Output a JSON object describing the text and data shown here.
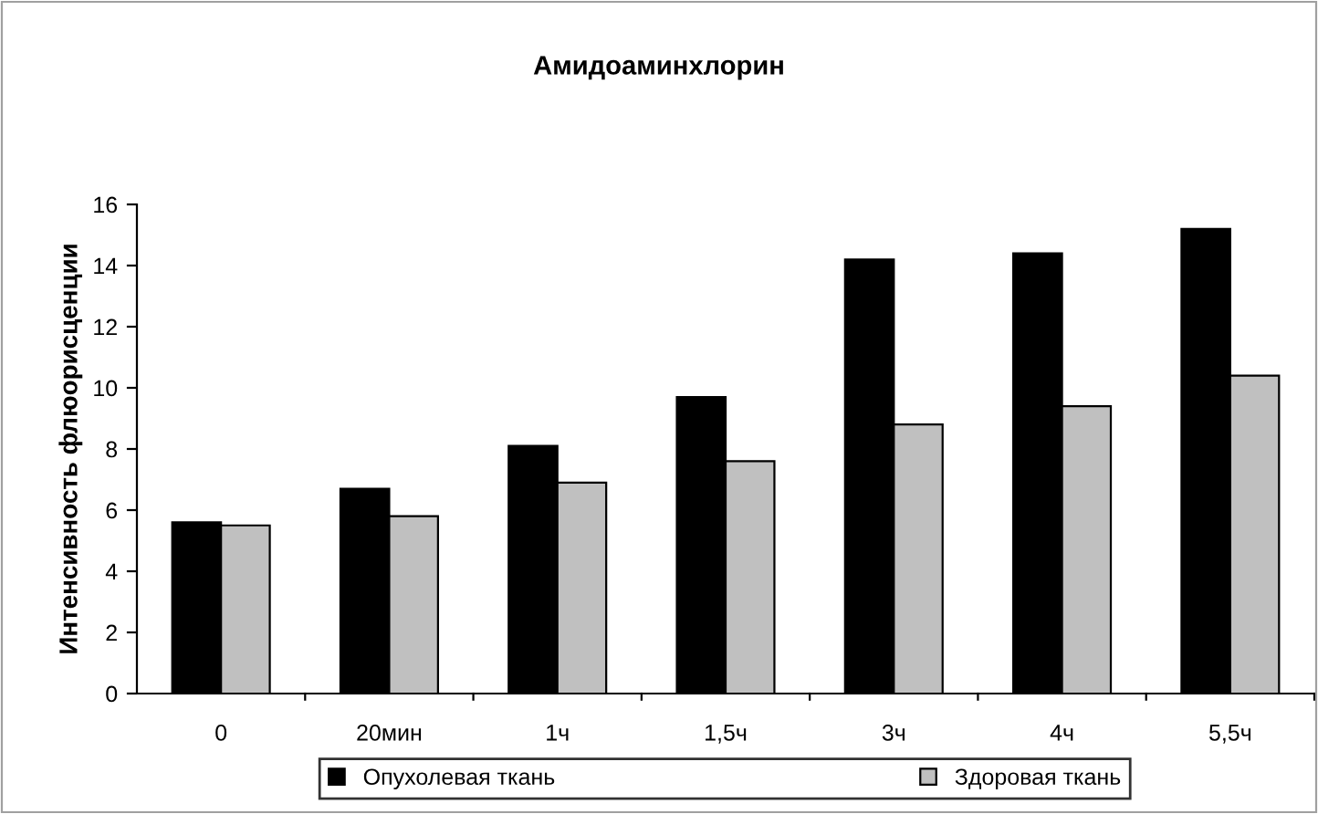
{
  "chart_data": {
    "type": "bar",
    "title": "Амидоаминхлорин",
    "ylabel": "Интенсивность флюорисценции",
    "categories": [
      "0",
      "20мин",
      "1ч",
      "1,5ч",
      "3ч",
      "4ч",
      "5,5ч"
    ],
    "series": [
      {
        "name": "Опухолевая ткань",
        "color": "#000000",
        "values": [
          5.6,
          6.7,
          8.1,
          9.7,
          14.2,
          14.4,
          15.2
        ]
      },
      {
        "name": "Здоровая ткань",
        "color": "#c0c0c0",
        "values": [
          5.5,
          5.8,
          6.9,
          7.6,
          8.8,
          9.4,
          10.4
        ]
      }
    ],
    "ylim": [
      0,
      16
    ],
    "yticks": [
      0,
      2,
      4,
      6,
      8,
      10,
      12,
      14,
      16
    ],
    "grid": false,
    "legend": "bottom"
  }
}
